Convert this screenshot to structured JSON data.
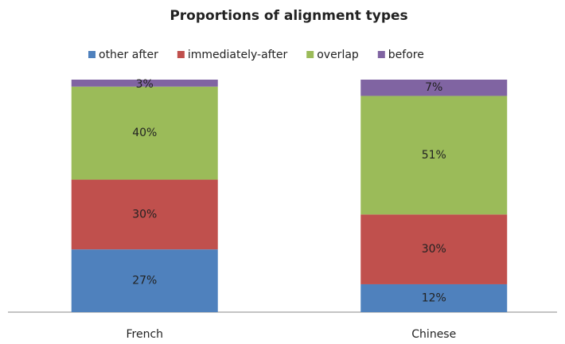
{
  "chart_data": {
    "type": "stacked_bar",
    "title": "Proportions of alignment types",
    "categories": [
      "French",
      "Chinese"
    ],
    "series": [
      {
        "name": "other after",
        "color": "#4f81bd",
        "values": [
          27,
          12
        ],
        "value_labels": [
          "27%",
          "12%"
        ]
      },
      {
        "name": "immediately-after",
        "color": "#c0504d",
        "values": [
          30,
          30
        ],
        "value_labels": [
          "30%",
          "30%"
        ]
      },
      {
        "name": "overlap",
        "color": "#9bbb59",
        "values": [
          40,
          51
        ],
        "value_labels": [
          "40%",
          "51%"
        ]
      },
      {
        "name": "before",
        "color": "#8064a2",
        "values": [
          3,
          7
        ],
        "value_labels": [
          "3%",
          "7%"
        ]
      }
    ],
    "legend": "top"
  }
}
